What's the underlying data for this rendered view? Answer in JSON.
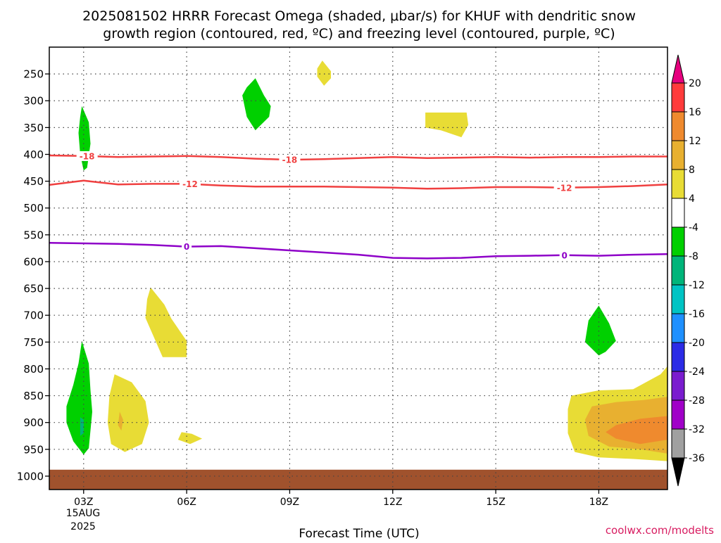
{
  "chart_data": {
    "type": "heatmap",
    "title_line1": "2025081502 HRRR Forecast Omega (shaded, μbar/s) for KHUF with dendritic snow",
    "title_line2": "growth region (contoured, red, ºC) and freezing level (contoured, purple, ºC)",
    "xlabel": "Forecast Time (UTC)",
    "ylabel": "",
    "x_ticks": [
      {
        "hour": 3,
        "label": "03Z"
      },
      {
        "hour": 6,
        "label": "06Z"
      },
      {
        "hour": 9,
        "label": "09Z"
      },
      {
        "hour": 12,
        "label": "12Z"
      },
      {
        "hour": 15,
        "label": "15Z"
      },
      {
        "hour": 18,
        "label": "18Z"
      }
    ],
    "x_date_line1": "15AUG",
    "x_date_line2": "2025",
    "xlim": [
      2,
      20
    ],
    "y_ticks": [
      250,
      300,
      350,
      400,
      450,
      500,
      550,
      600,
      650,
      700,
      750,
      800,
      850,
      900,
      950,
      1000
    ],
    "y_tick_labels": [
      "250",
      "300",
      "350",
      "400",
      "450",
      "500",
      "550",
      "600",
      "650",
      "700",
      "750",
      "800",
      "850",
      "900",
      "950",
      "1000"
    ],
    "ylim": [
      200,
      1025
    ],
    "y_inverted": true,
    "grid": true,
    "surface_top": 988,
    "surface_color": "#a0522d",
    "colorbar": {
      "levels": [
        20,
        16,
        12,
        8,
        4,
        -4,
        -8,
        -12,
        -16,
        -20,
        -24,
        -28,
        -32,
        -36
      ],
      "labels": [
        "20",
        "16",
        "12",
        "8",
        "4",
        "-4",
        "-8",
        "-12",
        "-16",
        "-20",
        "-24",
        "-28",
        "-32",
        "-36"
      ],
      "colors": [
        "#ff3b3b",
        "#ef8a2e",
        "#e8b030",
        "#e8dc35",
        "#ffffff",
        "#00d000",
        "#00b57a",
        "#00c4c4",
        "#1e90ff",
        "#2b2be6",
        "#7a1ccf",
        "#a000c8",
        "#a0a0a0"
      ],
      "top_arrow": "#e6007e",
      "bottom_arrow": "#000000"
    },
    "shaded_regions": [
      {
        "value": -4,
        "color": "#00d000",
        "points": [
          [
            2.95,
            310
          ],
          [
            3.15,
            340
          ],
          [
            3.2,
            380
          ],
          [
            3.1,
            425
          ],
          [
            3.0,
            430
          ],
          [
            2.9,
            400
          ],
          [
            2.85,
            360
          ],
          [
            2.9,
            330
          ]
        ]
      },
      {
        "value": -4,
        "color": "#00d000",
        "points": [
          [
            8.0,
            258
          ],
          [
            8.25,
            290
          ],
          [
            8.45,
            310
          ],
          [
            8.4,
            330
          ],
          [
            8.0,
            355
          ],
          [
            7.75,
            330
          ],
          [
            7.62,
            290
          ],
          [
            7.75,
            275
          ]
        ]
      },
      {
        "value": 4,
        "color": "#e8dc35",
        "points": [
          [
            9.95,
            225
          ],
          [
            10.2,
            245
          ],
          [
            10.2,
            258
          ],
          [
            10.0,
            272
          ],
          [
            9.8,
            255
          ],
          [
            9.8,
            240
          ]
        ]
      },
      {
        "value": 4,
        "color": "#e8dc35",
        "points": [
          [
            12.95,
            322
          ],
          [
            14.15,
            322
          ],
          [
            14.2,
            345
          ],
          [
            14.0,
            368
          ],
          [
            13.4,
            355
          ],
          [
            12.95,
            350
          ]
        ]
      },
      {
        "value": 4,
        "color": "#e8dc35",
        "points": [
          [
            4.95,
            648
          ],
          [
            5.35,
            680
          ],
          [
            5.55,
            706
          ],
          [
            6.0,
            748
          ],
          [
            6.0,
            778
          ],
          [
            5.3,
            778
          ],
          [
            4.8,
            705
          ],
          [
            4.85,
            670
          ]
        ]
      },
      {
        "value": -4,
        "color": "#00d000",
        "points": [
          [
            2.95,
            748
          ],
          [
            3.15,
            790
          ],
          [
            3.2,
            840
          ],
          [
            3.25,
            880
          ],
          [
            3.15,
            948
          ],
          [
            3.0,
            960
          ],
          [
            2.7,
            935
          ],
          [
            2.5,
            900
          ],
          [
            2.5,
            870
          ],
          [
            2.7,
            830
          ],
          [
            2.85,
            790
          ]
        ]
      },
      {
        "value": -8,
        "color": "#00b57a",
        "points": [
          [
            2.9,
            890
          ],
          [
            3.0,
            895
          ],
          [
            3.0,
            920
          ],
          [
            2.9,
            925
          ]
        ]
      },
      {
        "value": 4,
        "color": "#e8dc35",
        "points": [
          [
            3.9,
            810
          ],
          [
            4.4,
            825
          ],
          [
            4.8,
            860
          ],
          [
            4.9,
            900
          ],
          [
            4.7,
            940
          ],
          [
            4.2,
            955
          ],
          [
            3.8,
            940
          ],
          [
            3.7,
            900
          ],
          [
            3.75,
            850
          ]
        ]
      },
      {
        "value": 8,
        "color": "#e8b030",
        "points": [
          [
            4.05,
            880
          ],
          [
            4.15,
            895
          ],
          [
            4.1,
            915
          ],
          [
            4.0,
            905
          ]
        ]
      },
      {
        "value": 4,
        "color": "#e8dc35",
        "points": [
          [
            5.85,
            918
          ],
          [
            6.15,
            921
          ],
          [
            6.45,
            930
          ],
          [
            6.1,
            940
          ],
          [
            5.75,
            932
          ]
        ]
      },
      {
        "value": -4,
        "color": "#00d000",
        "points": [
          [
            18.0,
            682
          ],
          [
            18.3,
            715
          ],
          [
            18.5,
            748
          ],
          [
            18.2,
            768
          ],
          [
            18.0,
            775
          ],
          [
            17.6,
            750
          ],
          [
            17.7,
            710
          ]
        ]
      },
      {
        "value": 4,
        "color": "#e8dc35",
        "points": [
          [
            17.2,
            850
          ],
          [
            18,
            840
          ],
          [
            19,
            838
          ],
          [
            19.8,
            810
          ],
          [
            20,
            795
          ],
          [
            20,
            972
          ],
          [
            19,
            968
          ],
          [
            18,
            965
          ],
          [
            17.3,
            955
          ],
          [
            17.1,
            920
          ],
          [
            17.1,
            875
          ]
        ]
      },
      {
        "value": 8,
        "color": "#e8b030",
        "points": [
          [
            17.8,
            870
          ],
          [
            18.5,
            862
          ],
          [
            19.3,
            858
          ],
          [
            20,
            852
          ],
          [
            20,
            958
          ],
          [
            19.2,
            950
          ],
          [
            18.3,
            945
          ],
          [
            17.7,
            925
          ],
          [
            17.6,
            895
          ]
        ]
      },
      {
        "value": 12,
        "color": "#ef8a2e",
        "points": [
          [
            18.5,
            905
          ],
          [
            19.2,
            893
          ],
          [
            20,
            888
          ],
          [
            20,
            932
          ],
          [
            19.2,
            940
          ],
          [
            18.5,
            930
          ],
          [
            18.2,
            918
          ]
        ]
      }
    ],
    "contours": [
      {
        "value": -18,
        "color": "#f04040",
        "label": "-18",
        "label_hours": [
          3.1,
          9.0
        ],
        "points": [
          [
            2,
            402
          ],
          [
            3,
            403
          ],
          [
            4,
            405
          ],
          [
            5,
            404
          ],
          [
            6,
            403
          ],
          [
            7,
            405
          ],
          [
            8,
            408
          ],
          [
            9,
            410
          ],
          [
            10,
            409
          ],
          [
            11,
            407
          ],
          [
            12,
            405
          ],
          [
            13,
            407
          ],
          [
            14,
            406
          ],
          [
            15,
            405
          ],
          [
            16,
            406
          ],
          [
            17,
            405
          ],
          [
            18,
            405
          ],
          [
            19,
            404
          ],
          [
            20,
            404
          ]
        ]
      },
      {
        "value": -12,
        "color": "#f04040",
        "label": "-12",
        "label_hours": [
          6.1,
          17.0
        ],
        "points": [
          [
            2,
            457
          ],
          [
            3,
            449
          ],
          [
            4,
            456
          ],
          [
            5,
            455
          ],
          [
            6,
            455
          ],
          [
            7,
            458
          ],
          [
            8,
            460
          ],
          [
            9,
            460
          ],
          [
            10,
            460
          ],
          [
            11,
            461
          ],
          [
            12,
            462
          ],
          [
            13,
            464
          ],
          [
            14,
            463
          ],
          [
            15,
            461
          ],
          [
            16,
            461
          ],
          [
            17,
            462
          ],
          [
            18,
            461
          ],
          [
            19,
            459
          ],
          [
            20,
            456
          ]
        ]
      },
      {
        "value": 0,
        "color": "#8e00c8",
        "label": "0",
        "label_hours": [
          6.0,
          17.0
        ],
        "points": [
          [
            2,
            565
          ],
          [
            3,
            566
          ],
          [
            4,
            567
          ],
          [
            5,
            569
          ],
          [
            6,
            572
          ],
          [
            7,
            571
          ],
          [
            8,
            575
          ],
          [
            9,
            579
          ],
          [
            10,
            583
          ],
          [
            11,
            587
          ],
          [
            12,
            593
          ],
          [
            13,
            594
          ],
          [
            14,
            593
          ],
          [
            15,
            590
          ],
          [
            16,
            589
          ],
          [
            17,
            588
          ],
          [
            18,
            589
          ],
          [
            19,
            587
          ],
          [
            20,
            586
          ]
        ]
      }
    ]
  },
  "credit": "coolwx.com/modelts"
}
